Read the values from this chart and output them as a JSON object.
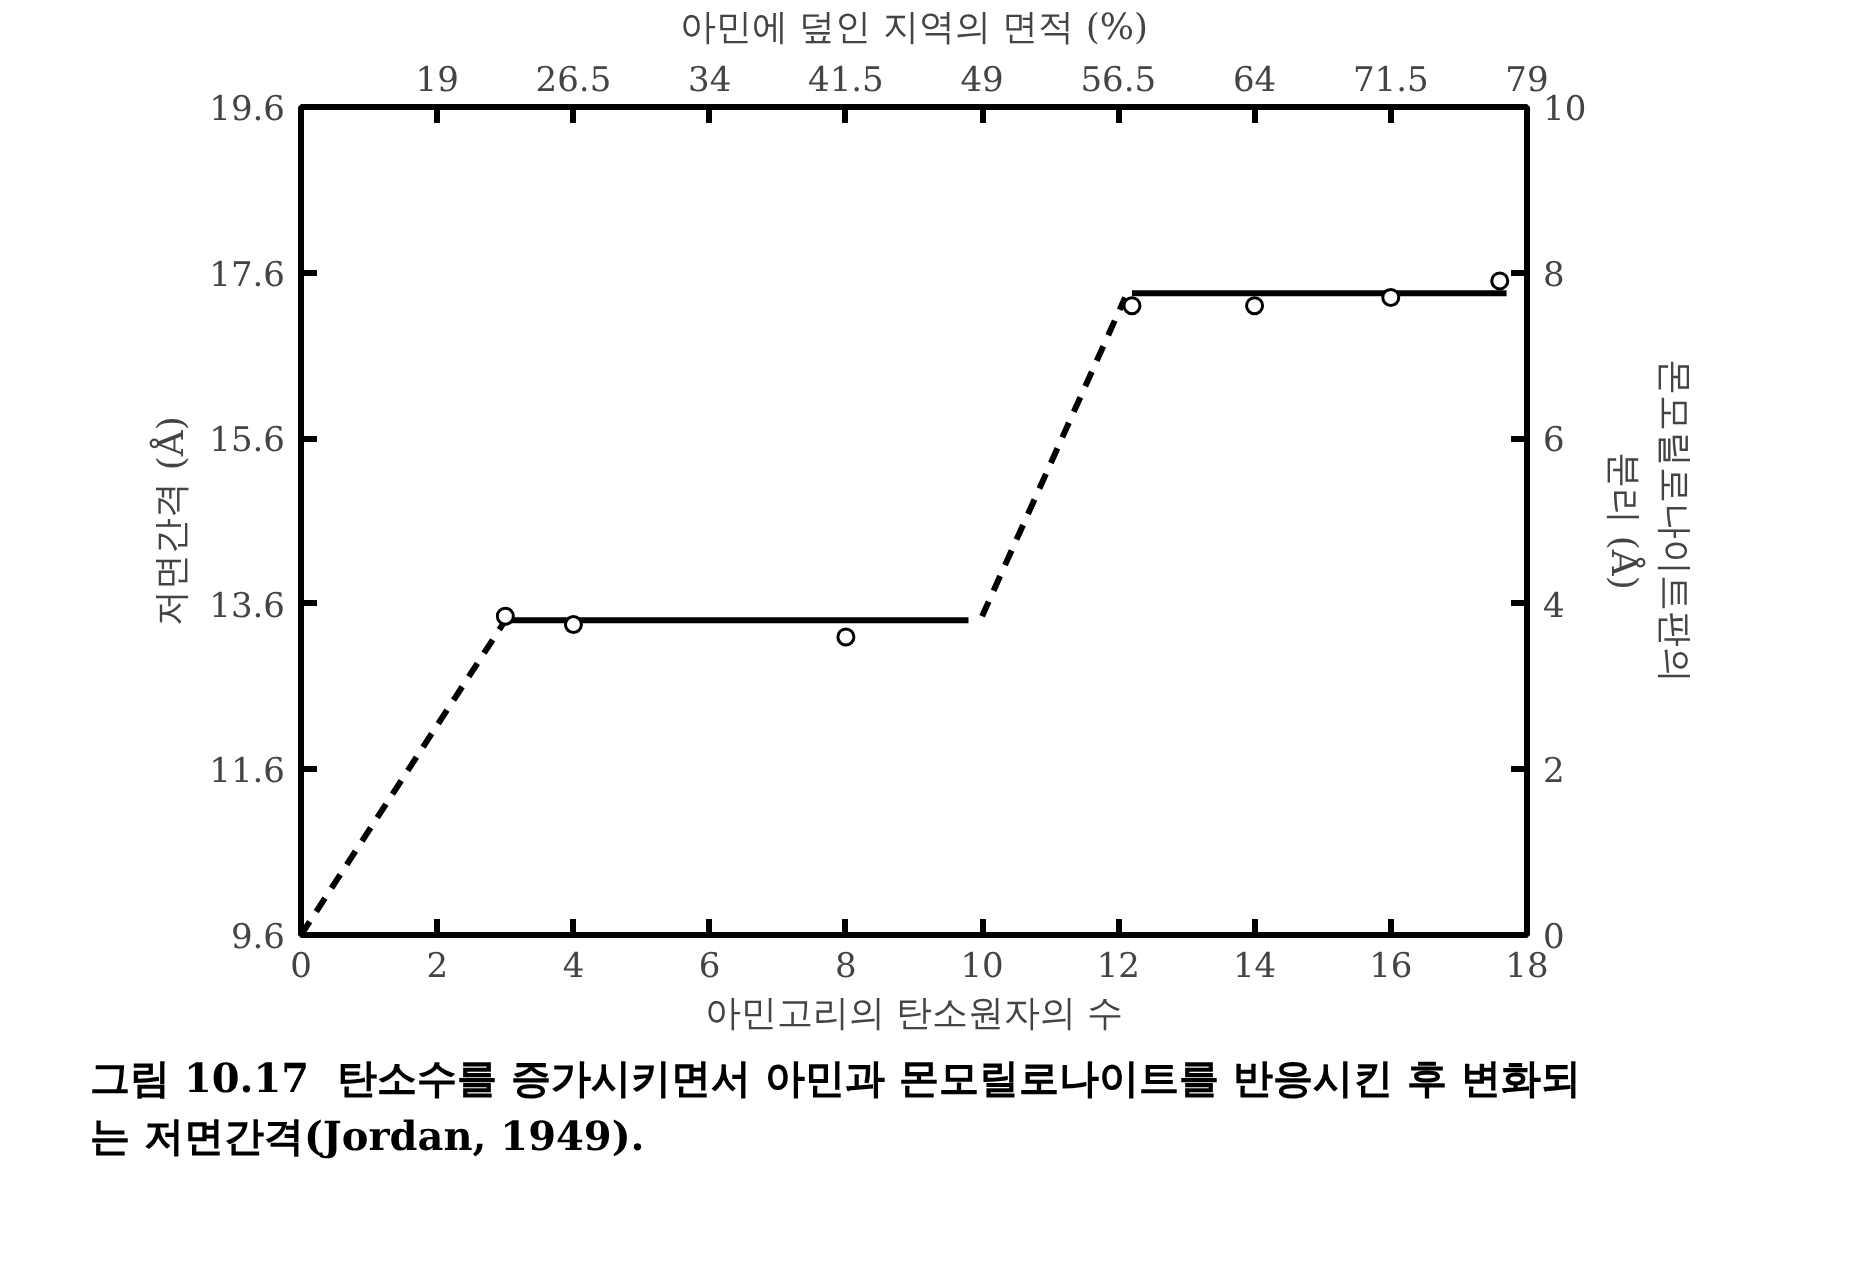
{
  "chart_data": {
    "type": "line",
    "xlabel": "아민고리의 탄소원자의 수",
    "x2label": "아민에 덮인 지역의 면적 (%)",
    "ylabel": "저면간격 (Å)",
    "y2label": "몬모릴로나이트판의\n분리 (Å)",
    "xlim": [
      0,
      18
    ],
    "xticks": [
      0,
      2,
      4,
      6,
      8,
      10,
      12,
      14,
      16,
      18
    ],
    "x2lim": [
      11.5,
      79
    ],
    "x2ticks": [
      19,
      26.5,
      34,
      41.5,
      49,
      56.5,
      64,
      71.5,
      79
    ],
    "ylim": [
      9.6,
      19.6
    ],
    "yticks": [
      9.6,
      11.6,
      13.6,
      15.6,
      17.6,
      19.6
    ],
    "y2lim": [
      0,
      10
    ],
    "y2ticks": [
      0,
      2,
      4,
      6,
      8,
      10
    ],
    "grid": false,
    "series": [
      {
        "color": "#000000",
        "line_style": "dashed",
        "marker": "none",
        "x": [
          0,
          3
        ],
        "values": [
          9.6,
          13.4
        ]
      },
      {
        "color": "#000000",
        "line_style": "solid",
        "marker": "none",
        "x": [
          3,
          9.8
        ],
        "values": [
          13.4,
          13.4
        ]
      },
      {
        "color": "#000000",
        "line_style": "dashed",
        "marker": "none",
        "x": [
          10,
          12.1
        ],
        "values": [
          13.45,
          17.3
        ]
      },
      {
        "color": "#000000",
        "line_style": "solid",
        "marker": "none",
        "x": [
          12.2,
          17.7
        ],
        "values": [
          17.35,
          17.35
        ]
      },
      {
        "type": "scatter",
        "color": "#000000",
        "marker": "circle",
        "x": [
          3,
          4,
          8,
          12.2,
          14,
          16,
          17.6
        ],
        "values": [
          13.45,
          13.35,
          13.2,
          17.2,
          17.2,
          17.3,
          17.5
        ]
      }
    ],
    "annotations": [
      "그림 10.17  탄소수를 증가시키면서 아민과 몬모릴로나이트를 반응시킨 후 변화되는 저면간격(Jordan, 1949)."
    ]
  }
}
